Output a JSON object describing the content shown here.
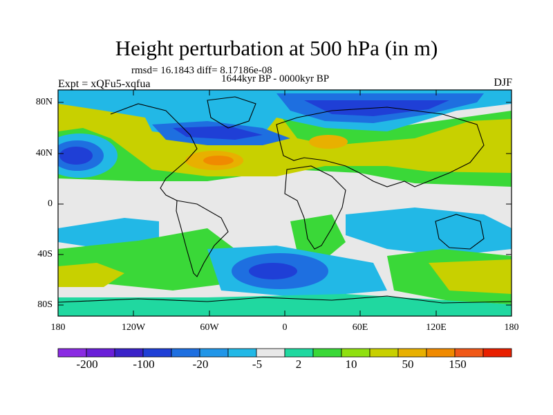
{
  "title": "Height perturbation at 500 hPa (in m)",
  "stats": "rmsd= 16.1843 diff= 8.17186e-08",
  "period": "1644kyr BP - 0000kyr BP",
  "experiment": "Expt = xQFu5-xqfua",
  "season": "DJF",
  "latitude_labels": [
    "80N",
    "40N",
    "0",
    "40S",
    "80S"
  ],
  "longitude_labels": [
    "180",
    "120W",
    "60W",
    "0",
    "60E",
    "120E",
    "180"
  ],
  "colorbar": {
    "labels": [
      "-200",
      "-100",
      "-20",
      "-5",
      "2",
      "10",
      "50",
      "150"
    ],
    "colors": [
      "#8a2be2",
      "#6a1fd8",
      "#3a22c8",
      "#1f3fd6",
      "#1e6fe0",
      "#2196e8",
      "#22b8e6",
      "#e8e8e8",
      "#20d8a0",
      "#3ad838",
      "#90e010",
      "#c8d000",
      "#e8b000",
      "#f08a00",
      "#f05818",
      "#e82000"
    ]
  }
}
